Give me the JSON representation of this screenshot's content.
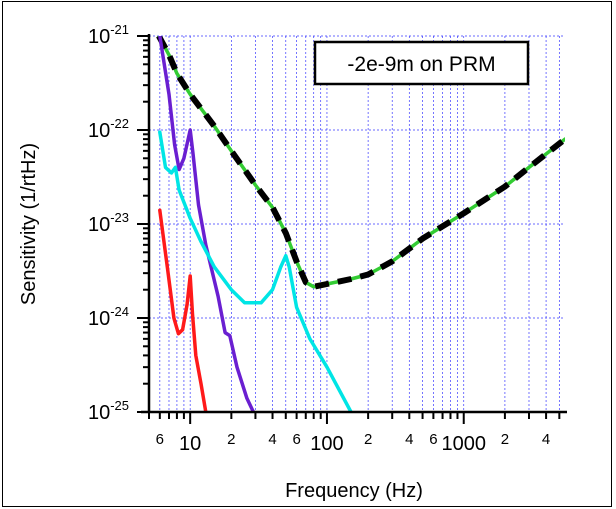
{
  "chart_data": {
    "type": "line",
    "title": "",
    "xlabel": "Frequency (Hz)",
    "ylabel": "Sensitivity (1/rtHz)",
    "xscale": "log",
    "yscale": "log",
    "xlim": [
      5,
      5500
    ],
    "ylim": [
      1e-25,
      1e-21
    ],
    "grid": true,
    "annotation": "-2e-9m on PRM",
    "annotation_position": "top-right",
    "x_tick_labels": [
      {
        "value": 6,
        "label": "6",
        "major": false
      },
      {
        "value": 10,
        "label": "10",
        "major": true
      },
      {
        "value": 20,
        "label": "2",
        "major": false
      },
      {
        "value": 40,
        "label": "4",
        "major": false
      },
      {
        "value": 60,
        "label": "6",
        "major": false
      },
      {
        "value": 100,
        "label": "100",
        "major": true
      },
      {
        "value": 200,
        "label": "2",
        "major": false
      },
      {
        "value": 400,
        "label": "4",
        "major": false
      },
      {
        "value": 600,
        "label": "6",
        "major": false
      },
      {
        "value": 1000,
        "label": "1000",
        "major": true
      },
      {
        "value": 2000,
        "label": "2",
        "major": false
      },
      {
        "value": 4000,
        "label": "4",
        "major": false
      }
    ],
    "y_tick_labels": [
      {
        "value": 1e-21,
        "base": "10",
        "exp": "-21"
      },
      {
        "value": 1e-22,
        "base": "10",
        "exp": "-22"
      },
      {
        "value": 1e-23,
        "base": "10",
        "exp": "-23"
      },
      {
        "value": 1e-24,
        "base": "10",
        "exp": "-24"
      },
      {
        "value": 1e-25,
        "base": "10",
        "exp": "-25"
      }
    ],
    "series": [
      {
        "color": "#33cc33",
        "dashed": false,
        "points": [
          [
            5.9,
            1e-21
          ],
          [
            7,
            6.3e-22
          ],
          [
            8,
            4e-22
          ],
          [
            10,
            2.4e-22
          ],
          [
            15,
            1.1e-22
          ],
          [
            20,
            6e-23
          ],
          [
            30,
            2.6e-23
          ],
          [
            40,
            1.5e-23
          ],
          [
            50,
            8e-24
          ],
          [
            60,
            4e-24
          ],
          [
            70,
            2.4e-24
          ],
          [
            80,
            2.15e-24
          ],
          [
            100,
            2.3e-24
          ],
          [
            150,
            2.6e-24
          ],
          [
            200,
            2.9e-24
          ],
          [
            300,
            4e-24
          ],
          [
            500,
            7e-24
          ],
          [
            1000,
            1.3e-23
          ],
          [
            2000,
            2.5e-23
          ],
          [
            3000,
            4e-23
          ],
          [
            5500,
            8e-23
          ]
        ]
      },
      {
        "color": "#000000",
        "dashed": true,
        "points": [
          [
            5.9,
            1e-21
          ],
          [
            7,
            6.3e-22
          ],
          [
            8,
            4e-22
          ],
          [
            10,
            2.4e-22
          ],
          [
            15,
            1.1e-22
          ],
          [
            20,
            6e-23
          ],
          [
            30,
            2.6e-23
          ],
          [
            40,
            1.5e-23
          ],
          [
            50,
            8e-24
          ],
          [
            60,
            4e-24
          ],
          [
            70,
            2.4e-24
          ],
          [
            80,
            2.15e-24
          ],
          [
            100,
            2.3e-24
          ],
          [
            150,
            2.6e-24
          ],
          [
            200,
            2.9e-24
          ],
          [
            300,
            4e-24
          ],
          [
            500,
            7e-24
          ],
          [
            1000,
            1.3e-23
          ],
          [
            2000,
            2.5e-23
          ],
          [
            3000,
            4e-23
          ],
          [
            5500,
            8e-23
          ]
        ]
      },
      {
        "color": "#6a1fd1",
        "dashed": false,
        "points": [
          [
            6,
            1e-21
          ],
          [
            7,
            2.4e-22
          ],
          [
            7.7,
            7e-23
          ],
          [
            8.3,
            3.8e-23
          ],
          [
            9,
            5e-23
          ],
          [
            10,
            1e-22
          ],
          [
            10.5,
            5.5e-23
          ],
          [
            11.5,
            1.6e-23
          ],
          [
            13,
            6e-24
          ],
          [
            16,
            1.7e-24
          ],
          [
            18,
            7e-25
          ],
          [
            19.5,
            6.5e-25
          ],
          [
            22,
            3e-25
          ],
          [
            26,
            1.4e-25
          ],
          [
            29,
            1e-25
          ]
        ]
      },
      {
        "color": "#00e5e5",
        "dashed": false,
        "points": [
          [
            6,
            9.5e-23
          ],
          [
            6.6,
            4e-23
          ],
          [
            7.3,
            3.5e-23
          ],
          [
            7.8,
            4e-23
          ],
          [
            8.3,
            2.3e-23
          ],
          [
            10,
            1.15e-23
          ],
          [
            12,
            6.5e-24
          ],
          [
            15,
            3.5e-24
          ],
          [
            20,
            2e-24
          ],
          [
            25,
            1.45e-24
          ],
          [
            33,
            1.45e-24
          ],
          [
            40,
            2e-24
          ],
          [
            46,
            3.5e-24
          ],
          [
            50,
            4.6e-24
          ],
          [
            53,
            3.5e-24
          ],
          [
            60,
            1.3e-24
          ],
          [
            75,
            6e-25
          ],
          [
            100,
            3e-25
          ],
          [
            150,
            1e-25
          ]
        ]
      },
      {
        "color": "#ff1a1a",
        "dashed": false,
        "points": [
          [
            6,
            1.4e-23
          ],
          [
            6.8,
            3.5e-24
          ],
          [
            7.6,
            1e-24
          ],
          [
            8.2,
            6.8e-25
          ],
          [
            8.8,
            7.5e-25
          ],
          [
            9.5,
            1.4e-24
          ],
          [
            10,
            2.8e-24
          ],
          [
            10.4,
            1.1e-24
          ],
          [
            11,
            4e-25
          ],
          [
            12,
            2e-25
          ],
          [
            13,
            1e-25
          ]
        ]
      }
    ]
  }
}
